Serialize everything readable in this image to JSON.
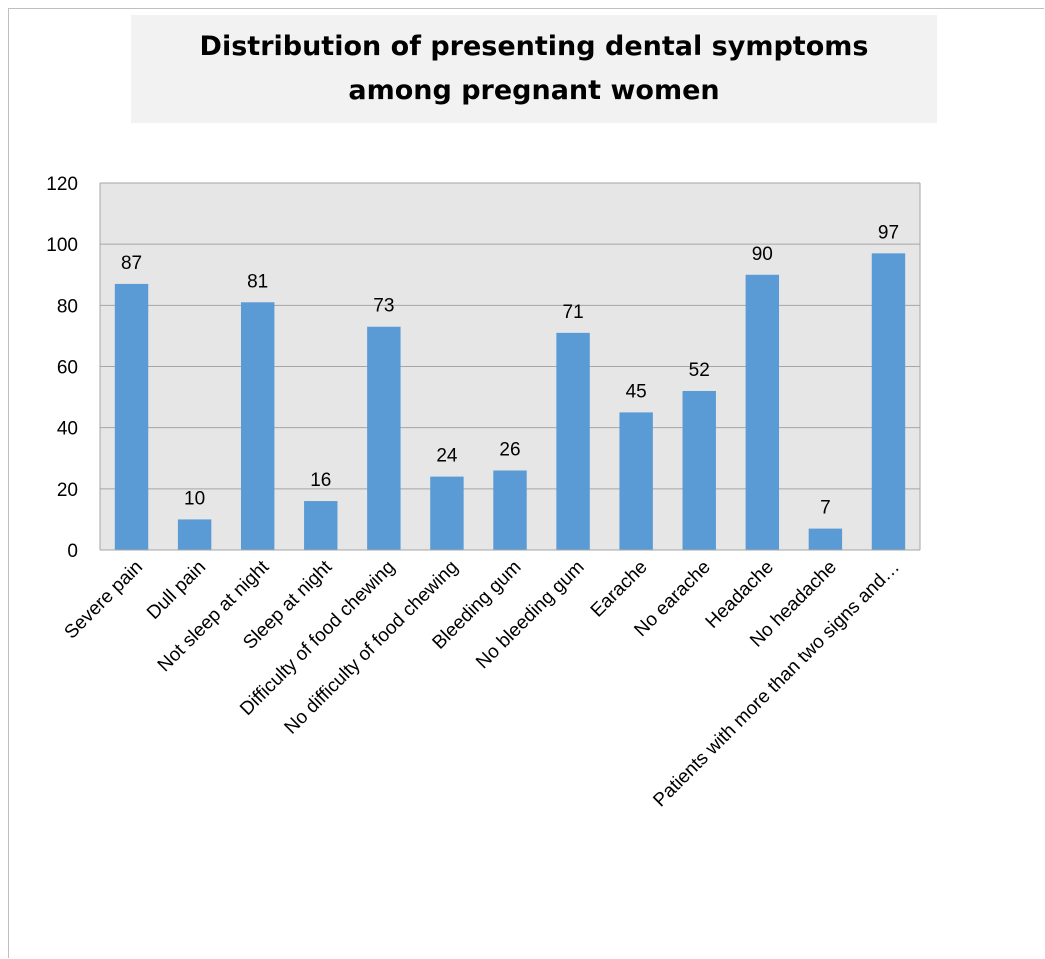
{
  "chart_data": {
    "type": "bar",
    "title": "Distribution of presenting dental symptoms among pregnant women",
    "xlabel": "",
    "ylabel": "",
    "categories": [
      "Severe pain",
      "Dull pain",
      "Not sleep at night",
      "Sleep at night",
      "Difficulty of food chewing",
      "No difficulty of food chewing",
      "Bleeding gum",
      "No bleeding gum",
      "Earache",
      "No earache",
      "Headache",
      "No headache",
      "Patients with more than two signs and…"
    ],
    "values": [
      87,
      10,
      81,
      16,
      73,
      24,
      26,
      71,
      45,
      52,
      90,
      7,
      97
    ],
    "ylim": [
      0,
      120
    ],
    "yticks": [
      0,
      20,
      40,
      60,
      80,
      100,
      120
    ],
    "grid": true,
    "legend": "none",
    "colors": {
      "bar": "#5b9bd5",
      "plot_background": "#e6e6e6",
      "gridline": "#a6a6a6",
      "title_background": "#f2f2f2"
    }
  }
}
